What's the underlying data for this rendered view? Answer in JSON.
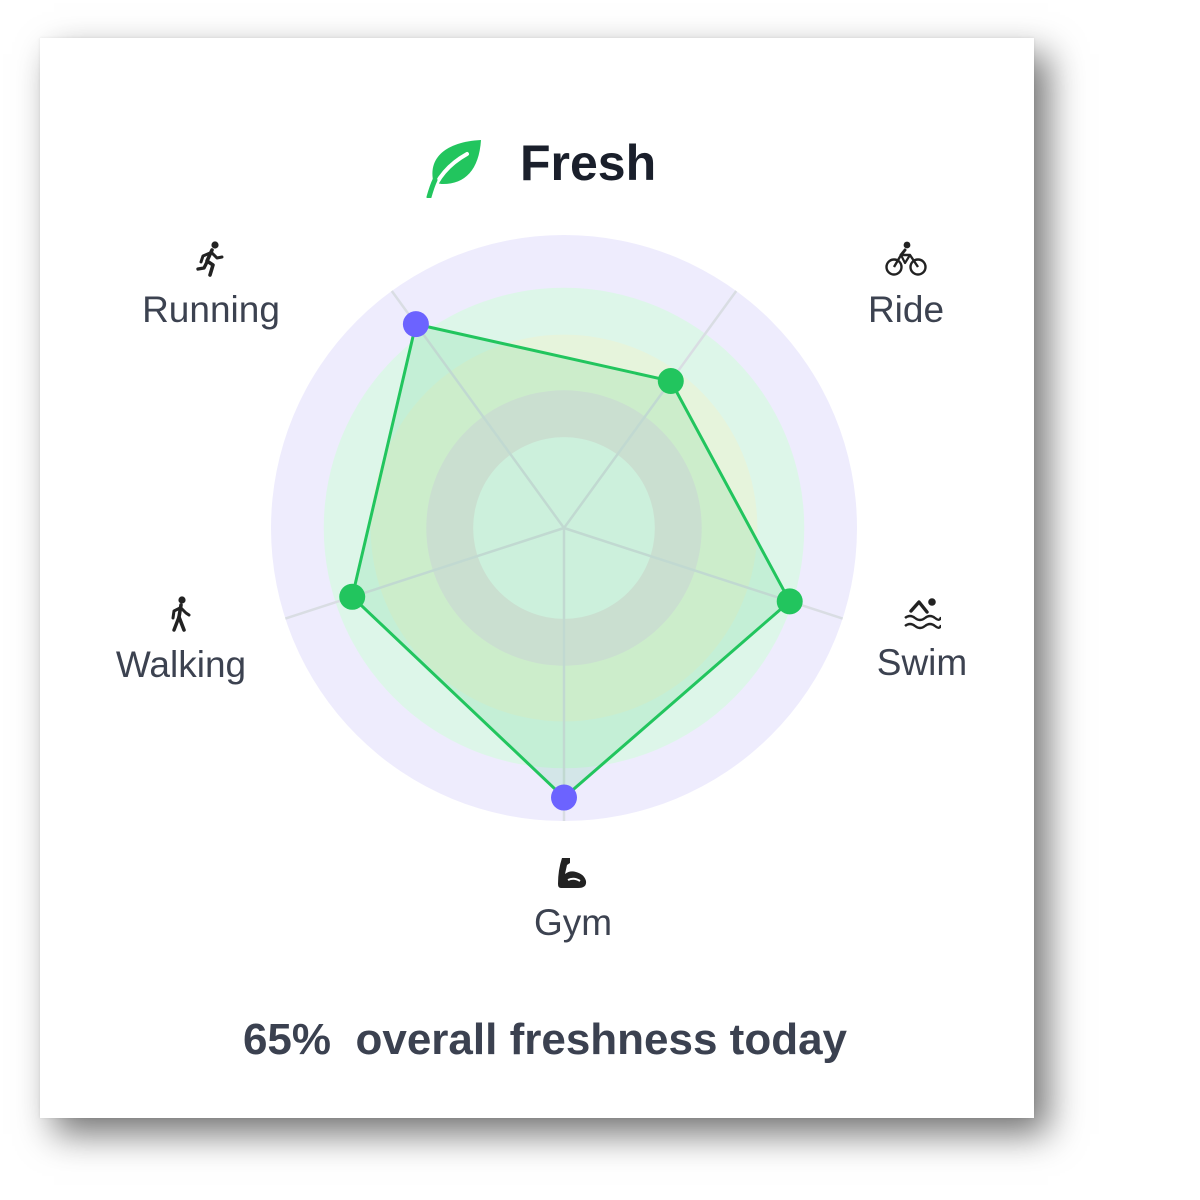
{
  "header": {
    "title": "Fresh",
    "icon": "leaf-icon",
    "accent_color": "#22c55e"
  },
  "chart_data": {
    "type": "radar",
    "title": "Fresh",
    "axes": [
      {
        "label": "Running",
        "icon": "running-icon",
        "value": 0.86,
        "marker_color": "#6c63ff"
      },
      {
        "label": "Ride",
        "icon": "bike-icon",
        "value": 0.62,
        "marker_color": "#22c55e"
      },
      {
        "label": "Swim",
        "icon": "swimming-icon",
        "value": 0.81,
        "marker_color": "#22c55e"
      },
      {
        "label": "Gym",
        "icon": "muscle-icon",
        "value": 0.92,
        "marker_color": "#6c63ff"
      },
      {
        "label": "Walking",
        "icon": "walking-icon",
        "value": 0.76,
        "marker_color": "#22c55e"
      }
    ],
    "range": [
      0,
      1
    ],
    "bands": [
      {
        "from": 0.0,
        "to": 0.31,
        "color": "#e6f7ef"
      },
      {
        "from": 0.31,
        "to": 0.47,
        "color": "#e4e4e2"
      },
      {
        "from": 0.47,
        "to": 0.66,
        "color": "#e6f4dc"
      },
      {
        "from": 0.66,
        "to": 0.82,
        "color": "#ddf6e9"
      },
      {
        "from": 0.82,
        "to": 1.0,
        "color": "#eeecfd"
      }
    ],
    "polygon_stroke": "#22c55e",
    "polygon_fill": "rgba(34,197,94,0.13)",
    "grid": true
  },
  "summary": {
    "percent": "65%",
    "text": "overall freshness today"
  }
}
